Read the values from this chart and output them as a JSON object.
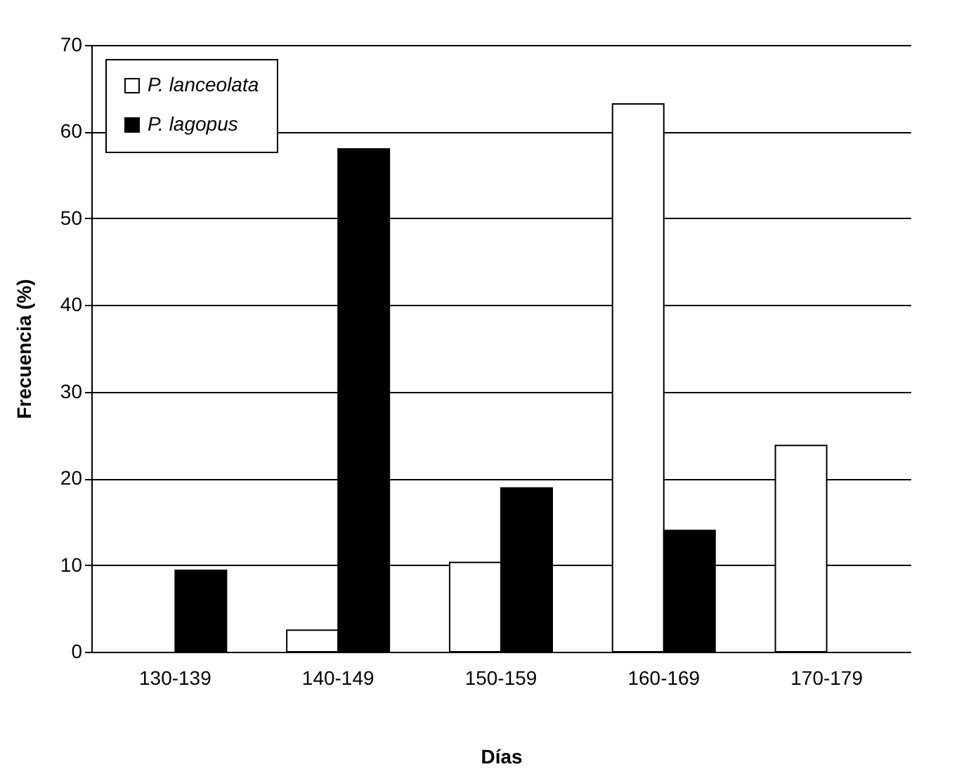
{
  "chart_data": {
    "type": "bar",
    "xlabel": "Días",
    "ylabel": "Frecuencia (%)",
    "categories": [
      "130-139",
      "140-149",
      "150-159",
      "160-169",
      "170-179"
    ],
    "series": [
      {
        "name": "P. lanceolata",
        "color": "#ffffff",
        "values": [
          null,
          2.5,
          10.3,
          63.2,
          23.8
        ]
      },
      {
        "name": "P. lagopus",
        "color": "#000000",
        "values": [
          9.4,
          58,
          18.9,
          14,
          null
        ]
      }
    ],
    "ylim": [
      0,
      70
    ],
    "yticks": [
      0,
      10,
      20,
      30,
      40,
      50,
      60,
      70
    ],
    "grid": "y",
    "legend": "top left"
  }
}
